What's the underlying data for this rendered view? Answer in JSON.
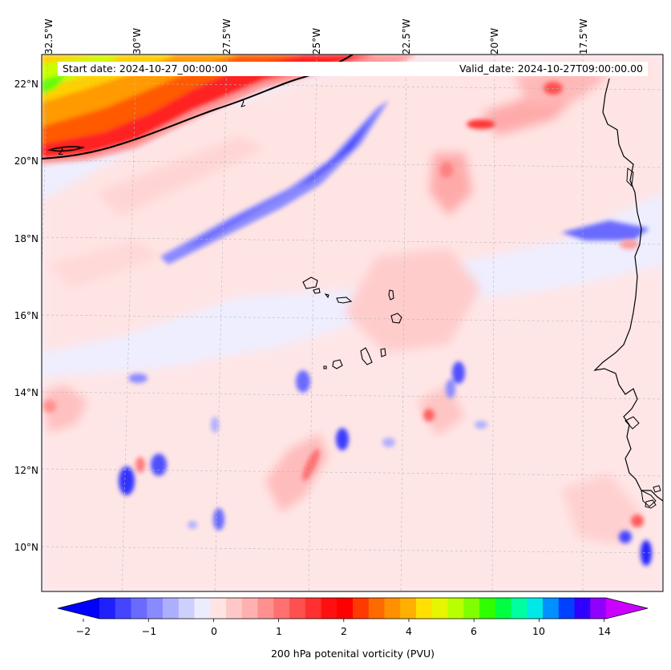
{
  "header": {
    "start_date": "Start date: 2024-10-27_00:00:00",
    "valid_date": "Valid_date: 2024-10-27T09:00:00.00"
  },
  "map": {
    "longitude_labels": [
      "32.5°W",
      "30°W",
      "27.5°W",
      "25°W",
      "22.5°W",
      "20°W",
      "17.5°W"
    ],
    "latitude_labels": [
      "22°N",
      "20°N",
      "18°N",
      "16°N",
      "14°N",
      "12°N",
      "10°N"
    ],
    "contour_label": "2",
    "colors": {
      "background": "#eeeeff",
      "land_outline": "#000000",
      "contour": "#000000"
    }
  },
  "colorbar": {
    "label": "200 hPa potenital vorticity (PVU)",
    "tick_labels": [
      "−2",
      "−1",
      "0",
      "1",
      "2",
      "4",
      "6",
      "10",
      "14"
    ],
    "colors": [
      "#0000ff",
      "#2020ff",
      "#4545ff",
      "#6a6aff",
      "#8a8aff",
      "#aeaeff",
      "#cfcfff",
      "#ececff",
      "#ffe4e4",
      "#ffc8c8",
      "#ffb0b0",
      "#ff9090",
      "#ff7070",
      "#ff5050",
      "#ff3030",
      "#ff1010",
      "#ff0000",
      "#ff3a00",
      "#ff6a00",
      "#ff9000",
      "#ffb000",
      "#ffe000",
      "#e6f500",
      "#b8ff00",
      "#80ff00",
      "#30ff00",
      "#00ff40",
      "#00ffa0",
      "#00e8e8",
      "#0090ff",
      "#0040ff",
      "#3000ff",
      "#9000ff",
      "#cc00ff"
    ]
  }
}
